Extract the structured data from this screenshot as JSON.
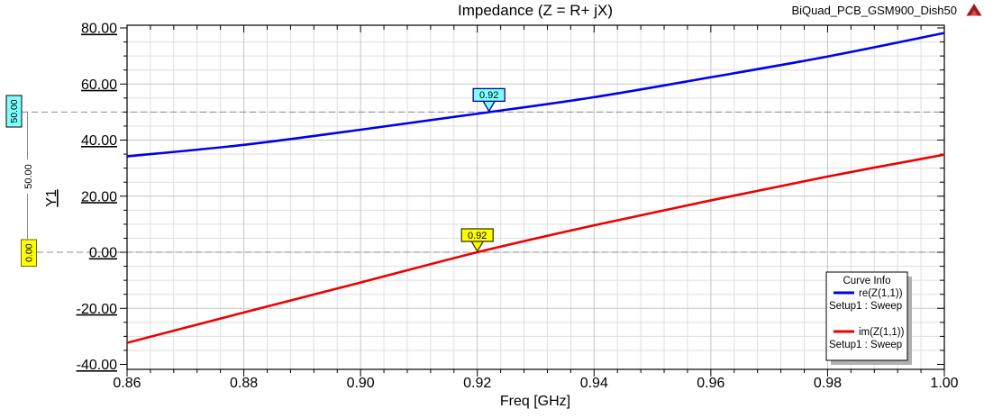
{
  "header": {
    "title": "Impedance (Z = R+ jX)",
    "project_name": "BiQuad_PCB_GSM900_Dish50"
  },
  "chart_data": {
    "type": "line",
    "title": "Impedance (Z = R+ jX)",
    "xlabel": "Freq [GHz]",
    "ylabel": "Y1",
    "xlim": [
      0.86,
      1.0
    ],
    "ylim": [
      -40,
      80
    ],
    "x_ticks": [
      0.86,
      0.88,
      0.9,
      0.92,
      0.94,
      0.96,
      0.98,
      1.0
    ],
    "y_ticks": [
      80,
      60,
      40,
      20,
      0,
      -20,
      -40
    ],
    "x_minor_step": 0.004,
    "y_minor_step": 5,
    "grid": "on",
    "colors": {
      "grid_minor": "#dedede",
      "grid_major": "#c6c6c6",
      "reference_dash": "#8c8c8c",
      "axis": "#000000"
    },
    "series": [
      {
        "key": "re",
        "name": "re(Z(1,1))",
        "sweep": "Setup1 : Sweep",
        "color": "#0000ee",
        "x": [
          0.86,
          0.88,
          0.9,
          0.92,
          0.94,
          0.96,
          0.98,
          1.0
        ],
        "y": [
          34.2,
          38.3,
          43.7,
          49.4,
          55.3,
          62.4,
          69.8,
          78.2
        ]
      },
      {
        "key": "im",
        "name": "im(Z(1,1))",
        "sweep": "Setup1 : Sweep",
        "color": "#ee0000",
        "x": [
          0.86,
          0.88,
          0.9,
          0.92,
          0.94,
          0.96,
          0.98,
          1.0
        ],
        "y": [
          -32.3,
          -21.5,
          -10.8,
          0.0,
          9.6,
          18.5,
          27.0,
          34.8
        ]
      }
    ],
    "markers": [
      {
        "label": "0.92",
        "x": 0.922,
        "y": 50,
        "fill": "#80ffff",
        "border": "#0000a0"
      },
      {
        "label": "0.92",
        "x": 0.92,
        "y": 0,
        "fill": "#ffff00",
        "border": "#3a3a00"
      }
    ],
    "reference_lines": [
      {
        "value": 50,
        "label": "50.00",
        "box_fill": "#80ffff",
        "box_border": "#000000"
      },
      {
        "value": 0,
        "label": "0.00",
        "box_fill": "#ffff00",
        "box_border": "#6b6b00"
      }
    ],
    "delta_annotation": {
      "label": "50.00"
    },
    "legend": {
      "title": "Curve Info",
      "position": "right-bottom",
      "entries": [
        {
          "label": "re(Z(1,1))",
          "sublabel": "Setup1 : Sweep",
          "color": "#0000ee"
        },
        {
          "label": "im(Z(1,1))",
          "sublabel": "Setup1 : Sweep",
          "color": "#ee0000"
        }
      ]
    }
  }
}
